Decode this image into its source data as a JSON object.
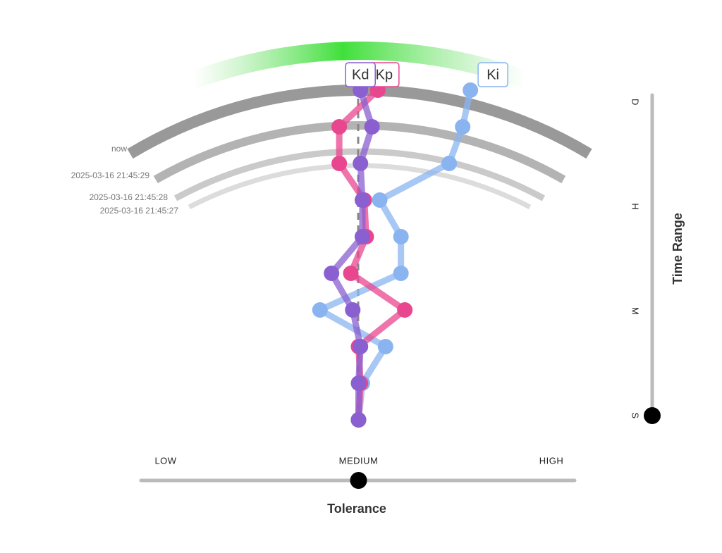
{
  "chart_data": {
    "type": "trace",
    "arc_labels": [
      "now",
      "2025-03-16 21:45:29",
      "2025-03-16 21:45:28",
      "2025-03-16 21:45:27"
    ],
    "series": [
      {
        "name": "Ki",
        "color": "#8ab4f0",
        "values": [
          0.58,
          0.54,
          0.47,
          0.11,
          0.22,
          0.22,
          -0.2,
          0.14,
          0.02,
          0
        ]
      },
      {
        "name": "Kp",
        "color": "#e8468f",
        "values": [
          0.1,
          -0.1,
          -0.1,
          0.03,
          0.04,
          -0.04,
          0.24,
          0,
          0.01,
          0
        ]
      },
      {
        "name": "Kd",
        "color": "#8a5fd0",
        "values": [
          0.01,
          0.07,
          0.01,
          0.02,
          0.02,
          -0.14,
          -0.03,
          0.01,
          0,
          0
        ]
      }
    ],
    "xlim": [
      -1,
      1
    ],
    "xticks": [
      {
        "value": -1,
        "label": "LOW"
      },
      {
        "value": 0,
        "label": "MEDIUM"
      },
      {
        "value": 1,
        "label": "HIGH"
      }
    ],
    "xlabel": "Tolerance",
    "tolerance": 0,
    "time_range": {
      "label": "Time Range",
      "ticks": [
        "D",
        "H",
        "M",
        "S"
      ],
      "selected": 3
    }
  }
}
